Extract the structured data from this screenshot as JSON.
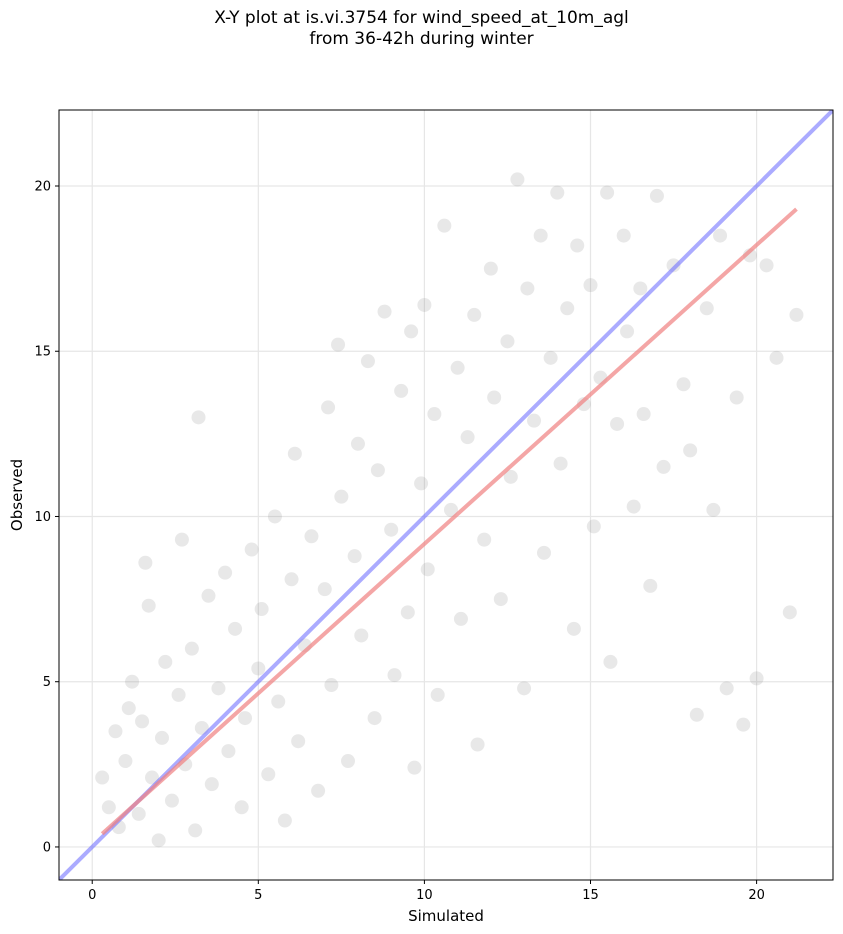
{
  "chart_data": {
    "type": "scatter",
    "title_line1": "X-Y plot at is.vi.3754 for wind_speed_at_10m_agl",
    "title_line2": "from 36-42h during winter",
    "xlabel": "Simulated",
    "ylabel": "Observed",
    "xlim": [
      -1.0,
      22.3
    ],
    "ylim": [
      -1.0,
      22.3
    ],
    "xticks": [
      0,
      5,
      10,
      15,
      20
    ],
    "yticks": [
      0,
      5,
      10,
      15,
      20
    ],
    "grid": true,
    "point_color": "#808080",
    "point_opacity": 0.18,
    "identity_line": {
      "color": "#6666ff",
      "opacity": 0.55,
      "x": [
        -1.0,
        22.3
      ],
      "y": [
        -1.0,
        22.3
      ]
    },
    "fit_line": {
      "color": "#f08080",
      "opacity": 0.7,
      "x": [
        0.3,
        21.2
      ],
      "y": [
        0.4,
        19.3
      ]
    },
    "points_sample": [
      [
        0.3,
        2.1
      ],
      [
        0.5,
        1.2
      ],
      [
        0.7,
        3.5
      ],
      [
        0.8,
        0.6
      ],
      [
        1.0,
        2.6
      ],
      [
        1.1,
        4.2
      ],
      [
        1.2,
        5.0
      ],
      [
        1.4,
        1.0
      ],
      [
        1.5,
        3.8
      ],
      [
        1.6,
        8.6
      ],
      [
        1.7,
        7.3
      ],
      [
        1.8,
        2.1
      ],
      [
        2.0,
        0.2
      ],
      [
        2.1,
        3.3
      ],
      [
        2.2,
        5.6
      ],
      [
        2.4,
        1.4
      ],
      [
        2.6,
        4.6
      ],
      [
        2.7,
        9.3
      ],
      [
        2.8,
        2.5
      ],
      [
        3.0,
        6.0
      ],
      [
        3.1,
        0.5
      ],
      [
        3.2,
        13.0
      ],
      [
        3.3,
        3.6
      ],
      [
        3.5,
        7.6
      ],
      [
        3.6,
        1.9
      ],
      [
        3.8,
        4.8
      ],
      [
        4.0,
        8.3
      ],
      [
        4.1,
        2.9
      ],
      [
        4.3,
        6.6
      ],
      [
        4.5,
        1.2
      ],
      [
        4.6,
        3.9
      ],
      [
        4.8,
        9.0
      ],
      [
        5.0,
        5.4
      ],
      [
        5.1,
        7.2
      ],
      [
        5.3,
        2.2
      ],
      [
        5.5,
        10.0
      ],
      [
        5.6,
        4.4
      ],
      [
        5.8,
        0.8
      ],
      [
        6.0,
        8.1
      ],
      [
        6.1,
        11.9
      ],
      [
        6.2,
        3.2
      ],
      [
        6.4,
        6.1
      ],
      [
        6.6,
        9.4
      ],
      [
        6.8,
        1.7
      ],
      [
        7.0,
        7.8
      ],
      [
        7.1,
        13.3
      ],
      [
        7.2,
        4.9
      ],
      [
        7.4,
        15.2
      ],
      [
        7.5,
        10.6
      ],
      [
        7.7,
        2.6
      ],
      [
        7.9,
        8.8
      ],
      [
        8.0,
        12.2
      ],
      [
        8.1,
        6.4
      ],
      [
        8.3,
        14.7
      ],
      [
        8.5,
        3.9
      ],
      [
        8.6,
        11.4
      ],
      [
        8.8,
        16.2
      ],
      [
        9.0,
        9.6
      ],
      [
        9.1,
        5.2
      ],
      [
        9.3,
        13.8
      ],
      [
        9.5,
        7.1
      ],
      [
        9.6,
        15.6
      ],
      [
        9.7,
        2.4
      ],
      [
        9.9,
        11.0
      ],
      [
        10.0,
        16.4
      ],
      [
        10.1,
        8.4
      ],
      [
        10.3,
        13.1
      ],
      [
        10.4,
        4.6
      ],
      [
        10.6,
        18.8
      ],
      [
        10.8,
        10.2
      ],
      [
        11.0,
        14.5
      ],
      [
        11.1,
        6.9
      ],
      [
        11.3,
        12.4
      ],
      [
        11.5,
        16.1
      ],
      [
        11.6,
        3.1
      ],
      [
        11.8,
        9.3
      ],
      [
        12.0,
        17.5
      ],
      [
        12.1,
        13.6
      ],
      [
        12.3,
        7.5
      ],
      [
        12.5,
        15.3
      ],
      [
        12.6,
        11.2
      ],
      [
        12.8,
        20.2
      ],
      [
        13.0,
        4.8
      ],
      [
        13.1,
        16.9
      ],
      [
        13.3,
        12.9
      ],
      [
        13.5,
        18.5
      ],
      [
        13.6,
        8.9
      ],
      [
        13.8,
        14.8
      ],
      [
        14.0,
        19.8
      ],
      [
        14.1,
        11.6
      ],
      [
        14.3,
        16.3
      ],
      [
        14.5,
        6.6
      ],
      [
        14.6,
        18.2
      ],
      [
        14.8,
        13.4
      ],
      [
        15.0,
        17.0
      ],
      [
        15.1,
        9.7
      ],
      [
        15.3,
        14.2
      ],
      [
        15.5,
        19.8
      ],
      [
        15.6,
        5.6
      ],
      [
        15.8,
        12.8
      ],
      [
        16.0,
        18.5
      ],
      [
        16.1,
        15.6
      ],
      [
        16.3,
        10.3
      ],
      [
        16.5,
        16.9
      ],
      [
        16.6,
        13.1
      ],
      [
        16.8,
        7.9
      ],
      [
        17.0,
        19.7
      ],
      [
        17.2,
        11.5
      ],
      [
        17.5,
        17.6
      ],
      [
        17.8,
        14.0
      ],
      [
        18.0,
        12.0
      ],
      [
        18.2,
        4.0
      ],
      [
        18.5,
        16.3
      ],
      [
        18.7,
        10.2
      ],
      [
        18.9,
        18.5
      ],
      [
        19.1,
        4.8
      ],
      [
        19.4,
        13.6
      ],
      [
        19.6,
        3.7
      ],
      [
        19.8,
        17.9
      ],
      [
        20.0,
        5.1
      ],
      [
        20.3,
        17.6
      ],
      [
        20.6,
        14.8
      ],
      [
        21.0,
        7.1
      ],
      [
        21.2,
        16.1
      ]
    ]
  }
}
